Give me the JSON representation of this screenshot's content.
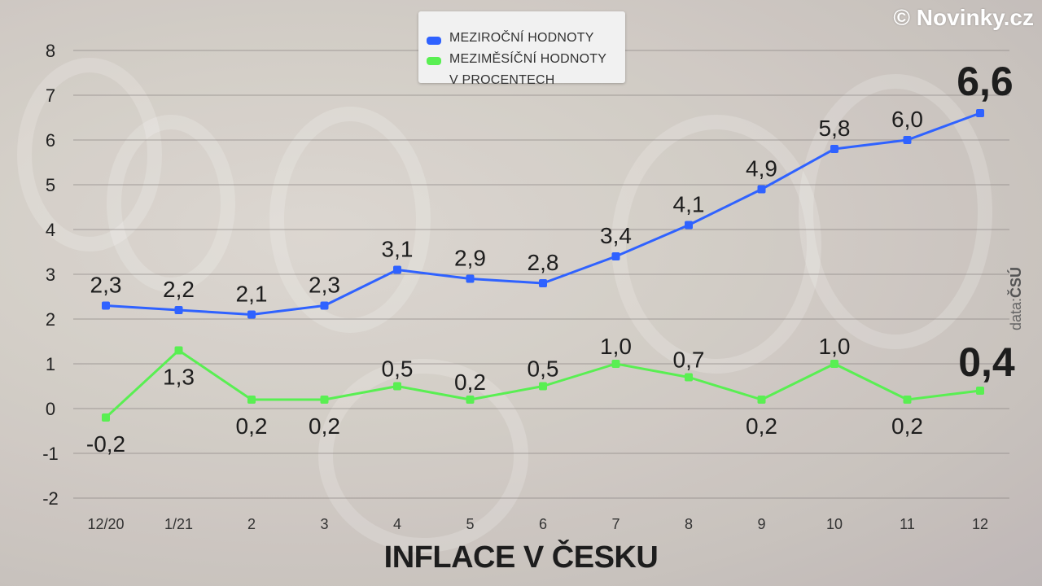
{
  "brand": "© Novinky.cz",
  "source_prefix": "data:",
  "source_name": "ČSÚ",
  "colors": {
    "blue": "#2f62ff",
    "green": "#59ef52",
    "grid": "#8a8583",
    "text": "#1d1d1d"
  },
  "chart_data": {
    "type": "line",
    "title": "INFLACE V ČESKU",
    "categories": [
      "12/20",
      "1/21",
      "2",
      "3",
      "4",
      "5",
      "6",
      "7",
      "8",
      "9",
      "10",
      "11",
      "12"
    ],
    "ylim": [
      -2,
      8
    ],
    "yticks": [
      "8",
      "7",
      "6",
      "5",
      "4",
      "3",
      "2",
      "1",
      "0",
      "-1",
      "-2"
    ],
    "grid": true,
    "legend_placement": "top-center",
    "legend": [
      "MEZIROČNÍ HODNOTY",
      "MEZIMĚSÍČNÍ HODNOTY",
      "V PROCENTECH"
    ],
    "series": [
      {
        "name": "MEZIROČNÍ HODNOTY",
        "color": "#2f62ff",
        "values": [
          2.3,
          2.2,
          2.1,
          2.3,
          3.1,
          2.9,
          2.8,
          3.4,
          4.1,
          4.9,
          5.8,
          6.0,
          6.6
        ],
        "labels": [
          "2,3",
          "2,2",
          "2,1",
          "2,3",
          "3,1",
          "2,9",
          "2,8",
          "3,4",
          "4,1",
          "4,9",
          "5,8",
          "6,0",
          "6,6"
        ]
      },
      {
        "name": "MEZIMĚSÍČNÍ HODNOTY",
        "color": "#59ef52",
        "values": [
          -0.2,
          1.3,
          0.2,
          0.2,
          0.5,
          0.2,
          0.5,
          1.0,
          0.7,
          0.2,
          1.0,
          0.2,
          0.4
        ],
        "labels": [
          "-0,2",
          "1,3",
          "0,2",
          "0,2",
          "0,5",
          "0,2",
          "0,5",
          "1,0",
          "0,7",
          "0,2",
          "1,0",
          "0,2",
          "0,4"
        ]
      }
    ]
  }
}
